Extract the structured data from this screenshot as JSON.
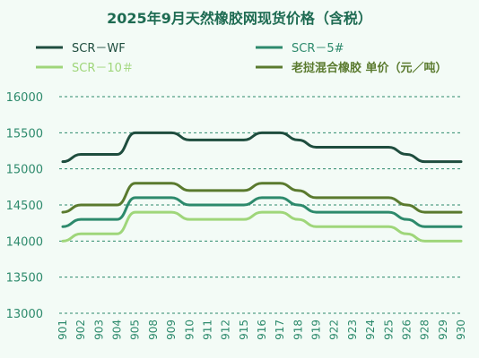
{
  "chart_data": {
    "type": "line",
    "title": "2025年9月天然橡胶网现货价格（含税）",
    "x": [
      "901",
      "902",
      "903",
      "904",
      "905",
      "908",
      "909",
      "910",
      "911",
      "912",
      "915",
      "916",
      "917",
      "918",
      "919",
      "922",
      "923",
      "924",
      "925",
      "926",
      "928",
      "929",
      "930"
    ],
    "ylim": [
      13000,
      16000
    ],
    "yticks": [
      13000,
      13500,
      14000,
      14500,
      15000,
      15500,
      16000
    ],
    "grid": true,
    "legend_position": "top",
    "series": [
      {
        "name": "SCR－WF",
        "color": "#1e4d3e",
        "values": [
          15100,
          15200,
          15200,
          15200,
          15500,
          15500,
          15500,
          15400,
          15400,
          15400,
          15400,
          15500,
          15500,
          15400,
          15300,
          15300,
          15300,
          15300,
          15300,
          15200,
          15100,
          15100,
          15100
        ]
      },
      {
        "name": "SCR－5#",
        "color": "#2d8a6c",
        "values": [
          14200,
          14300,
          14300,
          14300,
          14600,
          14600,
          14600,
          14500,
          14500,
          14500,
          14500,
          14600,
          14600,
          14500,
          14400,
          14400,
          14400,
          14400,
          14400,
          14300,
          14200,
          14200,
          14200
        ]
      },
      {
        "name": "SCR－10＃",
        "color": "#9fd67a",
        "values": [
          14000,
          14100,
          14100,
          14100,
          14400,
          14400,
          14400,
          14300,
          14300,
          14300,
          14300,
          14400,
          14400,
          14300,
          14200,
          14200,
          14200,
          14200,
          14200,
          14100,
          14000,
          14000,
          14000
        ]
      },
      {
        "name": "老挝混合橡胶 单价（元／吨）",
        "color": "#5a7a2e",
        "values": [
          14400,
          14500,
          14500,
          14500,
          14800,
          14800,
          14800,
          14700,
          14700,
          14700,
          14700,
          14800,
          14800,
          14700,
          14600,
          14600,
          14600,
          14600,
          14600,
          14500,
          14400,
          14400,
          14400
        ]
      }
    ]
  }
}
